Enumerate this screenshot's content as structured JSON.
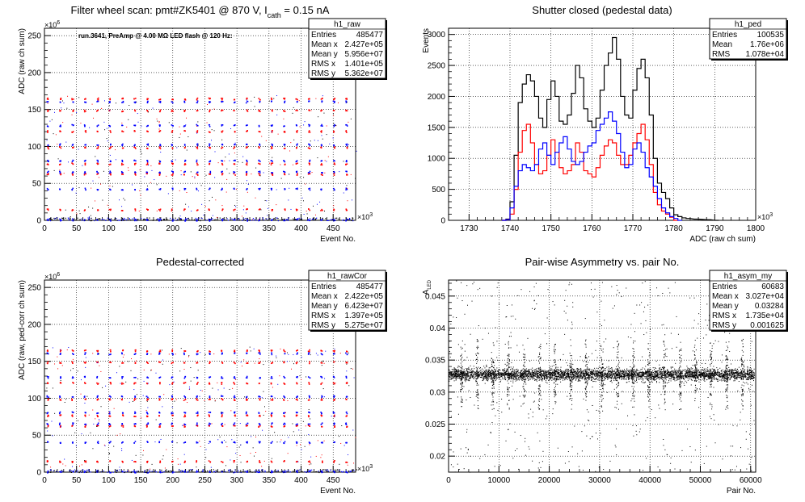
{
  "chart_data": [
    {
      "type": "scatter",
      "name": "raw",
      "title": "Filter wheel scan: pmt#ZK5401 @  870 V, I",
      "title_sub": "cath",
      "title_tail": " = 0.15 nA",
      "annotation": "run.3641, PreAmp @ 4.00 MΩ LED flash @  120 Hz:",
      "xlabel": "Event No.",
      "ylabel": "ADC (raw ch sum)",
      "x_exponent": "×10",
      "x_exponent_power": "3",
      "y_exponent": "×10",
      "y_exponent_power": "6",
      "xlim": [
        0,
        485
      ],
      "ylim": [
        0,
        260
      ],
      "x_ticks": [
        0,
        50,
        100,
        150,
        200,
        250,
        300,
        350,
        400,
        450
      ],
      "y_ticks": [
        0,
        50,
        100,
        150,
        200,
        250
      ],
      "levels": [
        0,
        14,
        42,
        62,
        65,
        76,
        80,
        98,
        102,
        120,
        128,
        148,
        160,
        164
      ],
      "series_colors": [
        "#ff0000",
        "#0000ff",
        "#000000"
      ],
      "stats": {
        "title": "h1_raw",
        "rows": [
          [
            "Entries",
            "485477"
          ],
          [
            "Mean x",
            "2.427e+05"
          ],
          [
            "Mean y",
            "5.956e+07"
          ],
          [
            "RMS x",
            "1.401e+05"
          ],
          [
            "RMS y",
            "5.362e+07"
          ]
        ]
      }
    },
    {
      "type": "line",
      "name": "ped",
      "title": "Shutter closed (pedestal data)",
      "xlabel": "ADC (raw ch sum)",
      "ylabel": "Events",
      "x_exponent": "×10",
      "x_exponent_power": "3",
      "xlim": [
        1725,
        1800
      ],
      "ylim": [
        0,
        3100
      ],
      "x_ticks": [
        1730,
        1740,
        1750,
        1760,
        1770,
        1780,
        1790,
        1800
      ],
      "y_ticks": [
        0,
        500,
        1000,
        1500,
        2000,
        2500,
        3000
      ],
      "series": [
        {
          "color": "#000000",
          "x": [
            1738,
            1739,
            1740,
            1741,
            1742,
            1743,
            1744,
            1745,
            1746,
            1747,
            1748,
            1749,
            1750,
            1751,
            1752,
            1753,
            1754,
            1755,
            1756,
            1757,
            1758,
            1759,
            1760,
            1761,
            1762,
            1763,
            1764,
            1765,
            1766,
            1767,
            1768,
            1769,
            1770,
            1771,
            1772,
            1773,
            1774,
            1775,
            1776,
            1777,
            1778,
            1779,
            1780,
            1781,
            1782,
            1783,
            1785,
            1788,
            1790
          ],
          "values": [
            0,
            20,
            300,
            1050,
            1900,
            2200,
            2350,
            2250,
            2000,
            1650,
            1500,
            1950,
            2250,
            2000,
            1600,
            1550,
            1700,
            2050,
            2500,
            2300,
            1800,
            1600,
            1500,
            1650,
            2100,
            2500,
            2700,
            2950,
            2600,
            2000,
            1700,
            1650,
            2100,
            2450,
            2600,
            2300,
            1700,
            1000,
            600,
            450,
            350,
            200,
            90,
            60,
            40,
            30,
            20,
            10,
            0
          ]
        },
        {
          "color": "#ff0000",
          "x": [
            1738,
            1739,
            1740,
            1741,
            1742,
            1743,
            1744,
            1745,
            1746,
            1747,
            1748,
            1749,
            1750,
            1751,
            1752,
            1753,
            1754,
            1755,
            1756,
            1757,
            1758,
            1759,
            1760,
            1761,
            1762,
            1763,
            1764,
            1765,
            1766,
            1767,
            1768,
            1769,
            1770,
            1771,
            1772,
            1773,
            1774,
            1775,
            1776,
            1777,
            1778,
            1779,
            1780
          ],
          "values": [
            0,
            10,
            100,
            500,
            1100,
            1450,
            1550,
            1250,
            900,
            750,
            800,
            1050,
            1300,
            1100,
            850,
            750,
            800,
            900,
            1250,
            1100,
            800,
            750,
            700,
            850,
            1050,
            1200,
            1300,
            1250,
            1050,
            900,
            900,
            1050,
            1250,
            1400,
            1550,
            1300,
            900,
            450,
            250,
            150,
            100,
            50,
            0
          ]
        },
        {
          "color": "#0000ff",
          "x": [
            1738,
            1739,
            1740,
            1741,
            1742,
            1743,
            1744,
            1745,
            1746,
            1747,
            1748,
            1749,
            1750,
            1751,
            1752,
            1753,
            1754,
            1755,
            1756,
            1757,
            1758,
            1759,
            1760,
            1761,
            1762,
            1763,
            1764,
            1765,
            1766,
            1767,
            1768,
            1769,
            1770,
            1771,
            1772,
            1773,
            1774,
            1775,
            1776,
            1777,
            1778,
            1779,
            1780,
            1781
          ],
          "values": [
            0,
            10,
            200,
            550,
            800,
            900,
            850,
            800,
            900,
            1150,
            1250,
            1050,
            900,
            1100,
            1250,
            1350,
            1150,
            950,
            900,
            950,
            1100,
            1200,
            1250,
            1450,
            1550,
            1650,
            1750,
            1600,
            1400,
            1100,
            850,
            900,
            1150,
            1250,
            1100,
            850,
            700,
            550,
            350,
            200,
            120,
            60,
            30,
            0
          ]
        }
      ],
      "stats": {
        "title": "h1_ped",
        "rows": [
          [
            "Entries",
            "100535"
          ],
          [
            "Mean",
            "1.76e+06"
          ],
          [
            "RMS",
            "1.078e+04"
          ]
        ]
      }
    },
    {
      "type": "scatter",
      "name": "rawCor",
      "title": "Pedestal-corrected",
      "xlabel": "Event No.",
      "ylabel": "ADC (raw, ped-corr ch sum)",
      "x_exponent": "×10",
      "x_exponent_power": "3",
      "y_exponent": "×10",
      "y_exponent_power": "6",
      "xlim": [
        0,
        485
      ],
      "ylim": [
        0,
        260
      ],
      "x_ticks": [
        0,
        50,
        100,
        150,
        200,
        250,
        300,
        350,
        400,
        450
      ],
      "y_ticks": [
        0,
        50,
        100,
        150,
        200,
        250
      ],
      "levels": [
        0,
        14,
        40,
        62,
        65,
        76,
        80,
        98,
        102,
        120,
        128,
        148,
        160,
        164
      ],
      "series_colors": [
        "#ff0000",
        "#0000ff",
        "#000000"
      ],
      "stats": {
        "title": "h1_rawCor",
        "rows": [
          [
            "Entries",
            "485477"
          ],
          [
            "Mean x",
            "2.422e+05"
          ],
          [
            "Mean y",
            "6.423e+07"
          ],
          [
            "RMS x",
            "1.397e+05"
          ],
          [
            "RMS y",
            "5.275e+07"
          ]
        ]
      }
    },
    {
      "type": "scatter",
      "name": "asym",
      "title": "Pair-wise Asymmetry vs. pair No.",
      "xlabel": "Pair No.",
      "ylabel": "A",
      "ylabel_sub": "LED",
      "xlim": [
        0,
        61000
      ],
      "ylim": [
        0.0175,
        0.0475
      ],
      "x_ticks": [
        0,
        10000,
        20000,
        30000,
        40000,
        50000,
        60000
      ],
      "y_ticks": [
        0.02,
        0.025,
        0.03,
        0.035,
        0.04,
        0.045
      ],
      "band_center": 0.0328,
      "spike_positions": [
        2500,
        5600,
        8700,
        11800,
        14900,
        18000,
        21100,
        24200,
        27300,
        30400,
        33500,
        36600,
        39700,
        42800,
        45900,
        49000,
        52100,
        55200,
        58300
      ],
      "stats": {
        "title": "h1_asym_my",
        "rows": [
          [
            "Entries",
            "60683"
          ],
          [
            "Mean x",
            "3.027e+04"
          ],
          [
            "Mean y",
            "0.03284"
          ],
          [
            "RMS x",
            "1.735e+04"
          ],
          [
            "RMS y",
            "0.001625"
          ]
        ]
      }
    }
  ]
}
